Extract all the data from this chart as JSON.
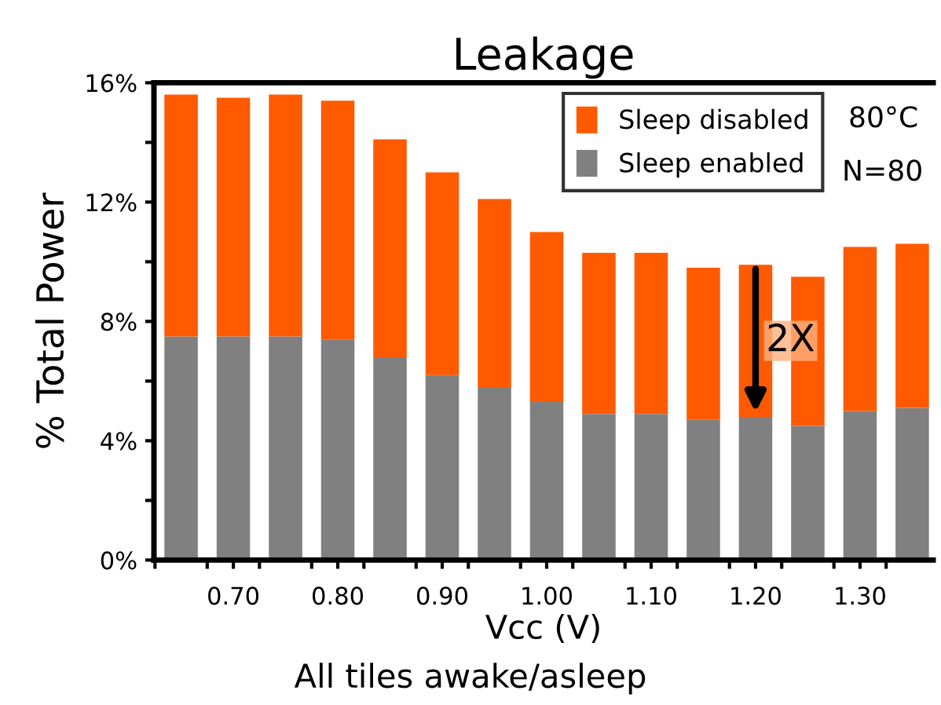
{
  "chart_data": {
    "type": "bar",
    "title": "Leakage",
    "xlabel": "Vcc (V)",
    "ylabel": "% Total Power",
    "x": [
      0.65,
      0.7,
      0.75,
      0.8,
      0.85,
      0.9,
      0.95,
      1.0,
      1.05,
      1.1,
      1.15,
      1.2,
      1.25,
      1.3,
      1.35
    ],
    "stacked": true,
    "series": [
      {
        "name": "Sleep enabled",
        "color": "#808080",
        "values": [
          7.5,
          7.5,
          7.5,
          7.4,
          6.8,
          6.2,
          5.8,
          5.3,
          4.9,
          4.9,
          4.7,
          4.8,
          4.5,
          5.0,
          5.1
        ]
      },
      {
        "name": "Sleep disabled",
        "color": "#ff5a00",
        "values": [
          8.1,
          8.0,
          8.1,
          8.0,
          7.3,
          6.8,
          6.3,
          5.7,
          5.4,
          5.4,
          5.1,
          5.1,
          5.0,
          5.5,
          5.5
        ]
      }
    ],
    "xlim": [
      0.624,
      1.37
    ],
    "xticks": [
      {
        "value": 0.625,
        "label": null
      },
      {
        "value": 0.675,
        "label": null
      },
      {
        "value": 0.7,
        "label": "0.70"
      },
      {
        "value": 0.725,
        "label": null
      },
      {
        "value": 0.775,
        "label": null
      },
      {
        "value": 0.8,
        "label": "0.80"
      },
      {
        "value": 0.825,
        "label": null
      },
      {
        "value": 0.875,
        "label": null
      },
      {
        "value": 0.9,
        "label": "0.90"
      },
      {
        "value": 0.925,
        "label": null
      },
      {
        "value": 0.975,
        "label": null
      },
      {
        "value": 1.0,
        "label": "1.00"
      },
      {
        "value": 1.025,
        "label": null
      },
      {
        "value": 1.075,
        "label": null
      },
      {
        "value": 1.1,
        "label": "1.10"
      },
      {
        "value": 1.125,
        "label": null
      },
      {
        "value": 1.175,
        "label": null
      },
      {
        "value": 1.2,
        "label": "1.20"
      },
      {
        "value": 1.225,
        "label": null
      },
      {
        "value": 1.275,
        "label": null
      },
      {
        "value": 1.3,
        "label": "1.30"
      },
      {
        "value": 1.325,
        "label": null
      }
    ],
    "ylim": [
      0,
      16
    ],
    "yticks": [
      {
        "value": 0,
        "label": "0%"
      },
      {
        "value": 2,
        "label": null
      },
      {
        "value": 4,
        "label": "4%"
      },
      {
        "value": 6,
        "label": null
      },
      {
        "value": 8,
        "label": "8%"
      },
      {
        "value": 10,
        "label": null
      },
      {
        "value": 12,
        "label": "12%"
      },
      {
        "value": 14,
        "label": null
      },
      {
        "value": 16,
        "label": "16%"
      }
    ],
    "grid": false,
    "legend": "top right",
    "annotations": [
      {
        "text": "2X",
        "x": 1.2,
        "y": 4.8
      },
      "80°C",
      "N=80",
      "All tiles awake/asleep"
    ]
  }
}
